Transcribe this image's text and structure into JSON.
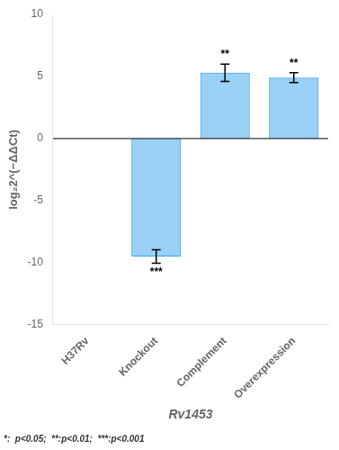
{
  "chart_data": {
    "type": "bar",
    "categories": [
      "H37Rv",
      "Knockout",
      "Complement",
      "Overexpression"
    ],
    "values": [
      0.0,
      -9.5,
      5.3,
      4.9
    ],
    "errors": [
      0.0,
      0.55,
      0.7,
      0.4
    ],
    "significance": [
      null,
      "***",
      "**",
      "**"
    ],
    "ylabel": "log₂2^(−ΔΔCt)",
    "xlabel": "Rv1453",
    "footnote": "*:  p<0.05;  **:p<0.01;  ***:p<0.001",
    "ylim": [
      -15,
      10
    ],
    "yticks": [
      -15,
      -10,
      -5,
      0,
      5,
      10
    ],
    "grid": false
  }
}
